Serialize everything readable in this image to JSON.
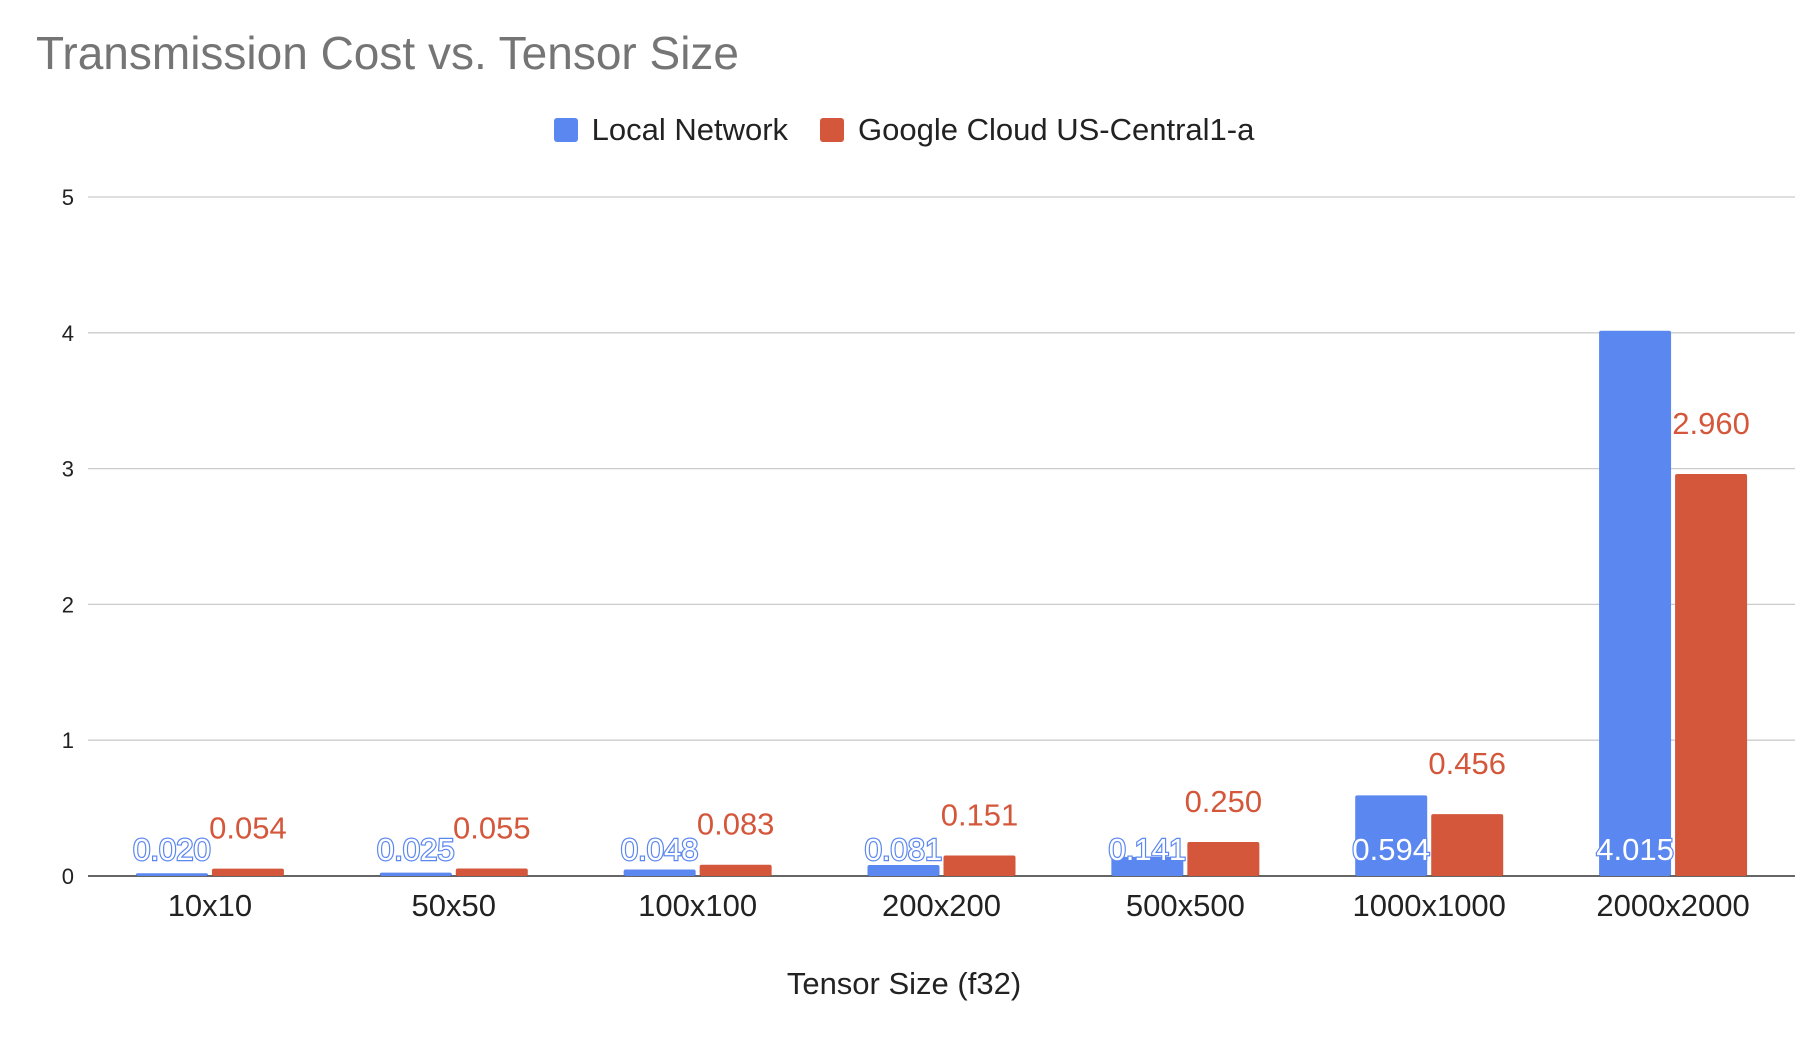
{
  "chart_data": {
    "type": "bar",
    "title": "Transmission Cost vs. Tensor Size",
    "xlabel": "Tensor Size (f32)",
    "ylabel": "",
    "ylim": [
      0,
      5
    ],
    "yticks": [
      "0",
      "1",
      "2",
      "3",
      "4",
      "5"
    ],
    "grid": true,
    "legend_position": "top",
    "categories": [
      "10x10",
      "50x50",
      "100x100",
      "200x200",
      "500x500",
      "1000x1000",
      "2000x2000"
    ],
    "series": [
      {
        "name": "Local Network",
        "color": "#5b87f0",
        "values": [
          0.02,
          0.025,
          0.048,
          0.081,
          0.141,
          0.594,
          4.015
        ],
        "labels": [
          "0.020",
          "0.025",
          "0.048",
          "0.081",
          "0.141",
          "0.594",
          "4.015"
        ]
      },
      {
        "name": "Google Cloud US-Central1-a",
        "color": "#d4573b",
        "values": [
          0.054,
          0.055,
          0.083,
          0.151,
          0.25,
          0.456,
          2.96
        ],
        "labels": [
          "0.054",
          "0.055",
          "0.083",
          "0.151",
          "0.250",
          "0.456",
          "2.960"
        ]
      }
    ]
  }
}
